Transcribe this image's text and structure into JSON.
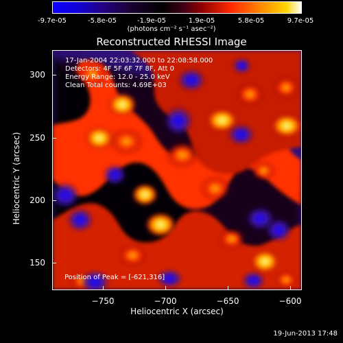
{
  "colorbar": {
    "tick_labels": [
      "-9.7e-05",
      "-5.8e-05",
      "-1.9e-05",
      "1.9e-05",
      "5.8e-05",
      "9.7e-05"
    ],
    "units": "(photons cm⁻² s⁻¹ asec⁻²)"
  },
  "title": "Reconstructed RHESSI Image",
  "annotations": {
    "time_range": "17-Jan-2004 22:03:32.000 to 22:08:58.000",
    "detectors": "Detectors: 4F 5F 6F 7F 8F, Att 0",
    "energy_range": "Energy Range: 12.0 - 25.0 keV",
    "clean": "Clean    Total counts: 4.69E+03",
    "peak": "Position of Peak = [-621,316]"
  },
  "axes": {
    "x_label": "Heliocentric X (arcsec)",
    "y_label": "Heliocentric Y (arcsec)",
    "x_ticks": [
      "−750",
      "−700",
      "−650",
      "−600"
    ],
    "y_ticks": [
      "300",
      "250",
      "200",
      "150"
    ]
  },
  "footer": {
    "timestamp": "19-Jun-2013 17:48"
  }
}
